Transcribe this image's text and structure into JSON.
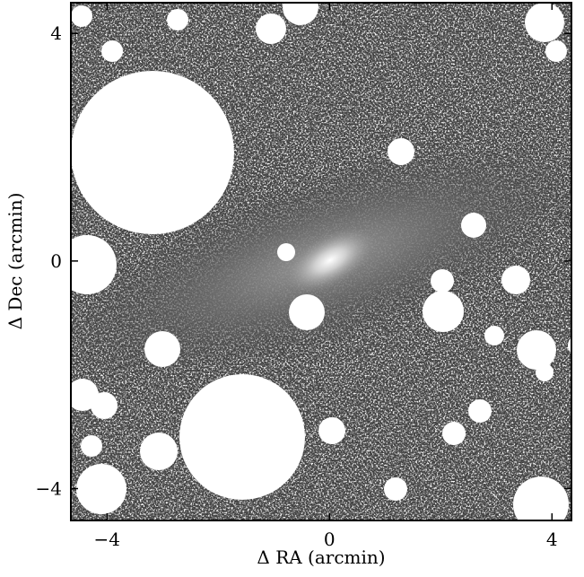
{
  "chart_data": {
    "type": "image",
    "xlabel": "Δ RA (arcmin)",
    "ylabel": "Δ Dec (arcmin)",
    "xlim": [
      -4.65,
      4.35
    ],
    "ylim": [
      -4.56,
      4.54
    ],
    "xticks": [
      {
        "value": -4,
        "label": "−4"
      },
      0,
      4
    ],
    "yticks": [
      {
        "value": -4,
        "label": "−4"
      },
      0,
      4
    ]
  }
}
